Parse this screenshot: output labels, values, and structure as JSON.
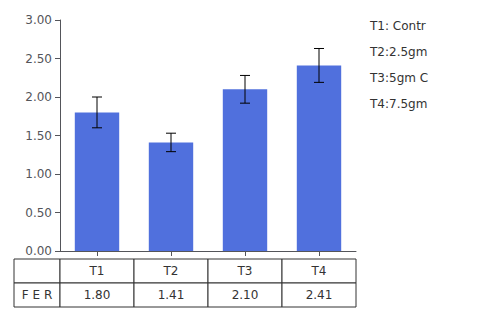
{
  "chart_data": {
    "type": "bar",
    "categories": [
      "T1",
      "T2",
      "T3",
      "T4"
    ],
    "values": [
      1.8,
      1.41,
      2.1,
      2.41
    ],
    "errors": [
      0.2,
      0.12,
      0.18,
      0.22
    ],
    "ylim": [
      0.0,
      3.0
    ],
    "yticks": [
      {
        "value": 0.0,
        "label": "0.00"
      },
      {
        "value": 0.5,
        "label": "0.50"
      },
      {
        "value": 1.0,
        "label": "1.00"
      },
      {
        "value": 1.5,
        "label": "1.50"
      },
      {
        "value": 2.0,
        "label": "2.00"
      },
      {
        "value": 2.5,
        "label": "2.50"
      },
      {
        "value": 3.0,
        "label": "3.00"
      }
    ],
    "grid": false,
    "table": {
      "row_label": "F E R",
      "values": [
        "1.80",
        "1.41",
        "2.10",
        "2.41"
      ]
    },
    "annotations": [
      "T1: Contr",
      "T2:2.5gm",
      "T3:5gm C",
      "T4:7.5gm"
    ]
  }
}
